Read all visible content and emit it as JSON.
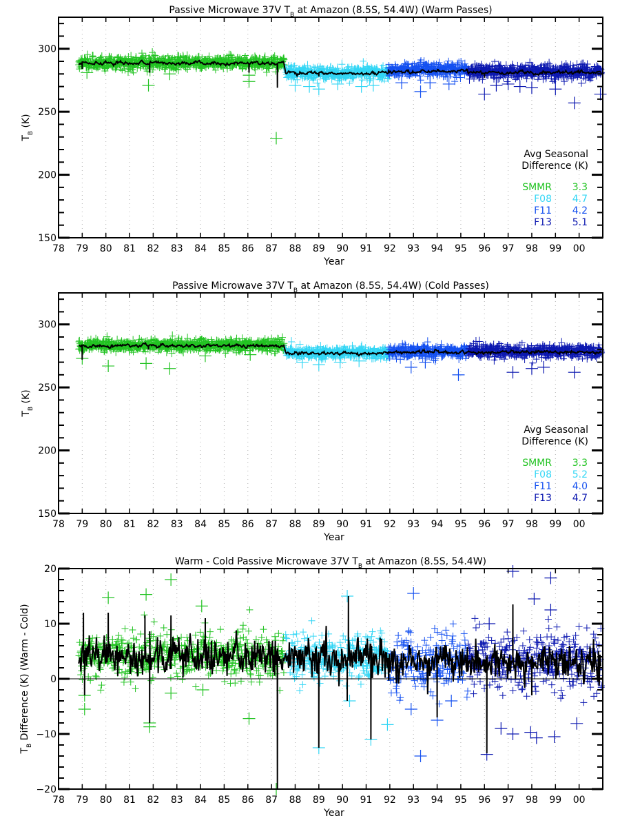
{
  "chart_data": [
    {
      "type": "scatter",
      "title": {
        "pre": "Passive Microwave 37V T",
        "sub": "B",
        "post": " at Amazon (8.5S, 54.4W) (Warm Passes)"
      },
      "xlabel": "Year",
      "ylabel": {
        "pre": "T",
        "sub": "B",
        "post": " (K)"
      },
      "xlim": [
        78,
        101
      ],
      "ylim": [
        150,
        325
      ],
      "yticks": [
        150,
        200,
        250,
        300
      ],
      "yminor": 10,
      "xtick_labels": [
        "78",
        "79",
        "80",
        "81",
        "82",
        "83",
        "84",
        "85",
        "86",
        "87",
        "88",
        "89",
        "90",
        "91",
        "92",
        "93",
        "94",
        "95",
        "96",
        "97",
        "98",
        "99",
        "00"
      ],
      "grid": "vertical dotted at each year",
      "legend_title": [
        "Avg Seasonal",
        "Difference (K)"
      ],
      "legend": [
        {
          "name": "SMMR",
          "value": "3.3",
          "color": "#22c322"
        },
        {
          "name": "F08",
          "value": "4.7",
          "color": "#33d6f5"
        },
        {
          "name": "F11",
          "value": "4.2",
          "color": "#1450f0"
        },
        {
          "name": "F13",
          "value": "5.1",
          "color": "#0c18b0"
        }
      ],
      "series": [
        {
          "name": "SMMR",
          "color": "#22c322",
          "x_range": [
            78.85,
            87.55
          ],
          "mean": 289,
          "sd": 2.6,
          "outliers": [
            [
              81.8,
              271
            ],
            [
              82.7,
              280
            ],
            [
              79.2,
              281
            ],
            [
              86.05,
              274
            ],
            [
              86.05,
              279
            ],
            [
              87.2,
              229
            ]
          ]
        },
        {
          "name": "F08",
          "color": "#33d6f5",
          "x_range": [
            87.6,
            91.95
          ],
          "mean": 281,
          "sd": 2.8,
          "outliers": [
            [
              88.0,
              271
            ],
            [
              88.6,
              270
            ],
            [
              89.0,
              268
            ],
            [
              89.8,
              272
            ],
            [
              90.8,
              270
            ],
            [
              91.3,
              271
            ]
          ]
        },
        {
          "name": "F11",
          "color": "#1450f0",
          "x_range": [
            91.95,
            95.3
          ],
          "mean": 283.5,
          "sd": 2.8,
          "outliers": [
            [
              92.5,
              273
            ],
            [
              93.3,
              266
            ],
            [
              93.7,
              273
            ],
            [
              94.5,
              272
            ]
          ]
        },
        {
          "name": "F13",
          "color": "#0c18b0",
          "x_range": [
            95.3,
            100.95
          ],
          "mean": 282,
          "sd": 3.0,
          "outliers": [
            [
              96.0,
              264
            ],
            [
              96.5,
              271
            ],
            [
              97.0,
              272
            ],
            [
              97.5,
              270
            ],
            [
              98.0,
              269
            ],
            [
              99.0,
              268
            ],
            [
              99.8,
              257
            ],
            [
              100.9,
              264
            ]
          ]
        }
      ],
      "running_mean": {
        "color": "#000000",
        "levels": [
          288.5,
          280.5,
          282,
          281
        ],
        "dips": [
          [
            79.0,
            284
          ],
          [
            81.85,
            281
          ],
          [
            86.05,
            281
          ],
          [
            87.25,
            269
          ],
          [
            89.0,
            278
          ],
          [
            96.0,
            277
          ]
        ]
      }
    },
    {
      "type": "scatter",
      "title": {
        "pre": "Passive Microwave 37V T",
        "sub": "B",
        "post": " at Amazon (8.5S, 54.4W) (Cold Passes)"
      },
      "xlabel": "Year",
      "ylabel": {
        "pre": "T",
        "sub": "B",
        "post": " (K)"
      },
      "xlim": [
        78,
        101
      ],
      "ylim": [
        150,
        325
      ],
      "yticks": [
        150,
        200,
        250,
        300
      ],
      "yminor": 10,
      "xtick_labels": [
        "78",
        "79",
        "80",
        "81",
        "82",
        "83",
        "84",
        "85",
        "86",
        "87",
        "88",
        "89",
        "90",
        "91",
        "92",
        "93",
        "94",
        "95",
        "96",
        "97",
        "98",
        "99",
        "00"
      ],
      "grid": "vertical dotted at each year",
      "legend_title": [
        "Avg Seasonal",
        "Difference (K)"
      ],
      "legend": [
        {
          "name": "SMMR",
          "value": "3.3",
          "color": "#22c322"
        },
        {
          "name": "F08",
          "value": "5.2",
          "color": "#33d6f5"
        },
        {
          "name": "F11",
          "value": "4.0",
          "color": "#1450f0"
        },
        {
          "name": "F13",
          "value": "4.7",
          "color": "#0c18b0"
        }
      ],
      "series": [
        {
          "name": "SMMR",
          "color": "#22c322",
          "x_range": [
            78.85,
            87.55
          ],
          "mean": 283.5,
          "sd": 2.3,
          "outliers": [
            [
              79.0,
              273
            ],
            [
              80.1,
              267
            ],
            [
              81.7,
              269
            ],
            [
              82.7,
              265
            ],
            [
              84.2,
              275
            ],
            [
              86.1,
              276
            ]
          ]
        },
        {
          "name": "F08",
          "color": "#33d6f5",
          "x_range": [
            87.6,
            91.95
          ],
          "mean": 277.5,
          "sd": 2.3,
          "outliers": [
            [
              88.3,
              270
            ],
            [
              89.0,
              268
            ],
            [
              89.9,
              270
            ],
            [
              90.7,
              271
            ]
          ]
        },
        {
          "name": "F11",
          "color": "#1450f0",
          "x_range": [
            91.95,
            95.3
          ],
          "mean": 278.5,
          "sd": 2.4,
          "outliers": [
            [
              92.9,
              266
            ],
            [
              93.5,
              270
            ],
            [
              94.9,
              260
            ]
          ]
        },
        {
          "name": "F13",
          "color": "#0c18b0",
          "x_range": [
            95.3,
            100.95
          ],
          "mean": 278.5,
          "sd": 2.5,
          "outliers": [
            [
              97.2,
              262
            ],
            [
              98.0,
              265
            ],
            [
              98.5,
              266
            ],
            [
              99.8,
              262
            ]
          ]
        }
      ],
      "running_mean": {
        "color": "#000000",
        "levels": [
          283,
          277,
          278,
          278
        ],
        "dips": [
          [
            79.0,
            272
          ],
          [
            81.8,
            280
          ]
        ]
      }
    },
    {
      "type": "scatter",
      "title": {
        "pre": "Warm - Cold Passive Microwave 37V T",
        "sub": "B",
        "post": " at Amazon (8.5S, 54.4W)"
      },
      "xlabel": "Year",
      "ylabel": {
        "pre": "T",
        "sub": "B",
        "post": " Difference (K) (Warm - Cold)"
      },
      "xlim": [
        78,
        101
      ],
      "ylim": [
        -20,
        20
      ],
      "yticks": [
        -20,
        -10,
        0,
        10,
        20
      ],
      "yminor": 2,
      "zero_line": true,
      "xtick_labels": [
        "78",
        "79",
        "80",
        "81",
        "82",
        "83",
        "84",
        "85",
        "86",
        "87",
        "88",
        "89",
        "90",
        "91",
        "92",
        "93",
        "94",
        "95",
        "96",
        "97",
        "98",
        "99",
        "00"
      ],
      "grid": "vertical dotted at each year",
      "series": [
        {
          "name": "SMMR",
          "color": "#22c322",
          "x_range": [
            78.85,
            87.55
          ],
          "mean": 4.2,
          "sd": 2.0,
          "outliers": [
            [
              79.1,
              -5.5
            ],
            [
              79.1,
              -3
            ],
            [
              80.1,
              14.7
            ],
            [
              81.7,
              15.3
            ],
            [
              81.85,
              -8
            ],
            [
              81.85,
              -8.7
            ],
            [
              82.75,
              18
            ],
            [
              82.75,
              -2.6
            ],
            [
              84.05,
              13.2
            ],
            [
              84.1,
              -2
            ],
            [
              86.05,
              -7.2
            ],
            [
              87.2,
              -20
            ]
          ]
        },
        {
          "name": "F08",
          "color": "#33d6f5",
          "x_range": [
            87.6,
            91.95
          ],
          "mean": 4.0,
          "sd": 2.0,
          "outliers": [
            [
              89.0,
              -12.5
            ],
            [
              90.2,
              15
            ],
            [
              90.3,
              -4
            ],
            [
              91.2,
              -11
            ],
            [
              91.9,
              -8.3
            ]
          ]
        },
        {
          "name": "F11",
          "color": "#1450f0",
          "x_range": [
            91.95,
            95.3
          ],
          "mean": 3.3,
          "sd": 2.6,
          "outliers": [
            [
              92.9,
              -5.5
            ],
            [
              93.0,
              15.5
            ],
            [
              93.3,
              -14
            ],
            [
              94.0,
              -7.5
            ],
            [
              94.6,
              -4
            ]
          ]
        },
        {
          "name": "F13",
          "color": "#0c18b0",
          "x_range": [
            95.3,
            100.95
          ],
          "mean": 3.2,
          "sd": 2.6,
          "outliers": [
            [
              96.1,
              -13.7
            ],
            [
              96.2,
              10
            ],
            [
              96.7,
              -9
            ],
            [
              97.2,
              19.5
            ],
            [
              97.2,
              -10
            ],
            [
              97.95,
              -9.7
            ],
            [
              98.1,
              14.5
            ],
            [
              98.2,
              -10.7
            ],
            [
              98.8,
              18.3
            ],
            [
              98.8,
              12.5
            ],
            [
              98.95,
              -10.5
            ],
            [
              99.9,
              -8.1
            ]
          ]
        }
      ],
      "running_mean": {
        "color": "#000000",
        "levels": [
          4,
          4,
          3,
          3
        ],
        "dips": [
          [
            79.05,
            12
          ],
          [
            79.1,
            -3
          ],
          [
            80.1,
            12
          ],
          [
            81.65,
            11.5
          ],
          [
            81.85,
            -8
          ],
          [
            82.75,
            11.5
          ],
          [
            84.2,
            11
          ],
          [
            87.25,
            -20
          ],
          [
            89.0,
            -12.5
          ],
          [
            90.25,
            15
          ],
          [
            90.2,
            -4
          ],
          [
            91.2,
            -11
          ],
          [
            94.0,
            -7
          ],
          [
            96.1,
            -13.5
          ],
          [
            97.2,
            13.5
          ],
          [
            98.0,
            -3
          ]
        ]
      }
    }
  ]
}
